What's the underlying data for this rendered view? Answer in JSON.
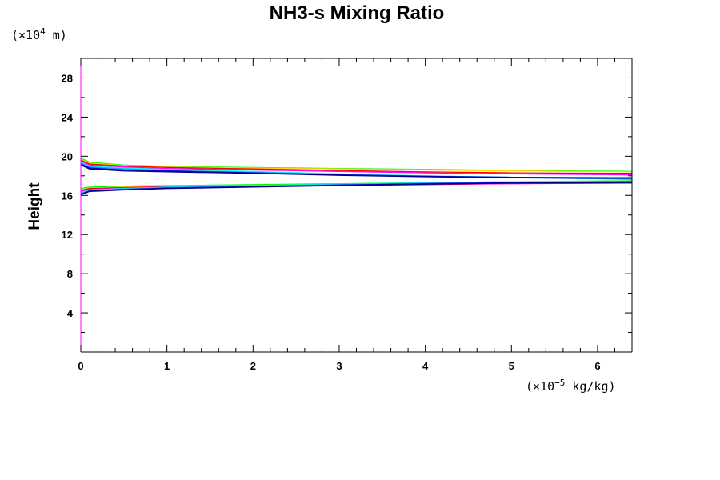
{
  "chart_data": {
    "type": "line",
    "title": "NH3-s Mixing Ratio",
    "ylabel": "Height",
    "xlabel": "",
    "y_unit_prefix": "(×10",
    "y_unit_exp": "4",
    "y_unit_suffix": " m)",
    "x_unit_prefix": "(×10",
    "x_unit_exp": "−5",
    "x_unit_suffix": " kg/kg)",
    "xlim": [
      0,
      6.4
    ],
    "ylim": [
      0,
      30
    ],
    "x_ticks": [
      0,
      1,
      2,
      3,
      4,
      5,
      6
    ],
    "y_ticks": [
      4,
      8,
      12,
      16,
      20,
      24,
      28
    ],
    "grid": false,
    "series": [
      {
        "color": "#00ff00",
        "values": [
          [
            0.0,
            19.8
          ],
          [
            0.1,
            19.4
          ],
          [
            0.5,
            19.1
          ],
          [
            1.0,
            18.95
          ],
          [
            2.0,
            18.85
          ],
          [
            3.0,
            18.75
          ],
          [
            4.0,
            18.65
          ],
          [
            5.0,
            18.55
          ],
          [
            6.4,
            18.45
          ]
        ]
      },
      {
        "color": "#ffd700",
        "values": [
          [
            0.0,
            19.7
          ],
          [
            0.1,
            19.3
          ],
          [
            0.5,
            19.05
          ],
          [
            1.0,
            18.9
          ],
          [
            2.0,
            18.8
          ],
          [
            3.0,
            18.7
          ],
          [
            4.0,
            18.6
          ],
          [
            5.0,
            18.5
          ],
          [
            6.4,
            18.4
          ]
        ]
      },
      {
        "color": "#ff0000",
        "values": [
          [
            0.0,
            19.6
          ],
          [
            0.1,
            19.2
          ],
          [
            0.5,
            19.0
          ],
          [
            1.0,
            18.85
          ],
          [
            2.0,
            18.7
          ],
          [
            3.0,
            18.55
          ],
          [
            4.0,
            18.4
          ],
          [
            5.0,
            18.3
          ],
          [
            6.4,
            18.25
          ]
        ]
      },
      {
        "color": "#ff00ff",
        "values": [
          [
            0.0,
            19.5
          ],
          [
            0.1,
            19.1
          ],
          [
            0.5,
            18.9
          ],
          [
            1.0,
            18.75
          ],
          [
            2.0,
            18.6
          ],
          [
            3.0,
            18.45
          ],
          [
            4.0,
            18.3
          ],
          [
            5.0,
            18.2
          ],
          [
            6.4,
            18.1
          ]
        ]
      },
      {
        "color": "#00ffff",
        "values": [
          [
            0.0,
            19.4
          ],
          [
            0.1,
            19.0
          ],
          [
            0.5,
            18.8
          ],
          [
            1.0,
            18.65
          ],
          [
            2.0,
            18.45
          ],
          [
            3.0,
            18.2
          ],
          [
            4.0,
            18.0
          ],
          [
            5.0,
            17.85
          ],
          [
            6.4,
            17.7
          ]
        ]
      },
      {
        "color": "#1e90ff",
        "values": [
          [
            0.0,
            19.3
          ],
          [
            0.1,
            18.9
          ],
          [
            0.5,
            18.7
          ],
          [
            1.0,
            18.55
          ],
          [
            2.0,
            18.35
          ],
          [
            3.0,
            18.15
          ],
          [
            4.0,
            17.95
          ],
          [
            5.0,
            17.8
          ],
          [
            6.4,
            17.65
          ]
        ]
      },
      {
        "color": "#0000cd",
        "values": [
          [
            0.0,
            19.2
          ],
          [
            0.1,
            18.8
          ],
          [
            0.5,
            18.6
          ],
          [
            1.0,
            18.5
          ],
          [
            2.0,
            18.3
          ],
          [
            3.0,
            18.1
          ],
          [
            4.0,
            17.95
          ],
          [
            5.0,
            17.85
          ],
          [
            6.4,
            17.8
          ]
        ]
      },
      {
        "color": "#000080",
        "values": [
          [
            0.0,
            19.1
          ],
          [
            0.1,
            18.7
          ],
          [
            0.5,
            18.5
          ],
          [
            1.0,
            18.4
          ],
          [
            2.0,
            18.25
          ],
          [
            3.0,
            18.05
          ],
          [
            4.0,
            17.9
          ],
          [
            5.0,
            17.8
          ],
          [
            6.4,
            17.75
          ]
        ]
      },
      {
        "color": "#00ff00",
        "values": [
          [
            0.0,
            16.7
          ],
          [
            0.1,
            16.85
          ],
          [
            0.5,
            16.95
          ],
          [
            1.0,
            17.0
          ],
          [
            2.0,
            17.1
          ],
          [
            3.0,
            17.2
          ],
          [
            4.0,
            17.3
          ],
          [
            5.0,
            17.4
          ],
          [
            6.4,
            17.5
          ]
        ]
      },
      {
        "color": "#ffd700",
        "values": [
          [
            0.0,
            16.6
          ],
          [
            0.1,
            16.75
          ],
          [
            0.5,
            16.85
          ],
          [
            1.0,
            16.95
          ],
          [
            2.0,
            17.0
          ],
          [
            3.0,
            17.05
          ],
          [
            4.0,
            17.15
          ],
          [
            5.0,
            17.25
          ],
          [
            6.4,
            17.35
          ]
        ]
      },
      {
        "color": "#ff0000",
        "values": [
          [
            0.0,
            16.5
          ],
          [
            0.1,
            16.7
          ],
          [
            0.5,
            16.8
          ],
          [
            1.0,
            16.9
          ],
          [
            2.0,
            16.95
          ],
          [
            3.0,
            17.0
          ],
          [
            4.0,
            17.1
          ],
          [
            5.0,
            17.2
          ],
          [
            6.4,
            17.3
          ]
        ]
      },
      {
        "color": "#ff00ff",
        "values": [
          [
            0.0,
            16.4
          ],
          [
            0.1,
            16.6
          ],
          [
            0.5,
            16.75
          ],
          [
            1.0,
            16.85
          ],
          [
            2.0,
            16.95
          ],
          [
            3.0,
            17.05
          ],
          [
            4.0,
            17.15
          ],
          [
            5.0,
            17.2
          ],
          [
            6.4,
            17.25
          ]
        ]
      },
      {
        "color": "#00ffff",
        "values": [
          [
            0.0,
            16.3
          ],
          [
            0.1,
            16.55
          ],
          [
            0.5,
            16.7
          ],
          [
            1.0,
            16.85
          ],
          [
            2.0,
            17.0
          ],
          [
            3.0,
            17.15
          ],
          [
            4.0,
            17.3
          ],
          [
            5.0,
            17.4
          ],
          [
            6.4,
            17.45
          ]
        ]
      },
      {
        "color": "#1e90ff",
        "values": [
          [
            0.0,
            16.2
          ],
          [
            0.1,
            16.5
          ],
          [
            0.5,
            16.65
          ],
          [
            1.0,
            16.8
          ],
          [
            2.0,
            16.95
          ],
          [
            3.0,
            17.1
          ],
          [
            4.0,
            17.25
          ],
          [
            5.0,
            17.35
          ],
          [
            6.4,
            17.4
          ]
        ]
      },
      {
        "color": "#0000cd",
        "values": [
          [
            0.0,
            16.1
          ],
          [
            0.1,
            16.45
          ],
          [
            0.5,
            16.6
          ],
          [
            1.0,
            16.75
          ],
          [
            2.0,
            16.9
          ],
          [
            3.0,
            17.05
          ],
          [
            4.0,
            17.2
          ],
          [
            5.0,
            17.3
          ],
          [
            6.4,
            17.4
          ]
        ]
      },
      {
        "color": "#000080",
        "values": [
          [
            0.0,
            16.05
          ],
          [
            0.1,
            16.4
          ],
          [
            0.5,
            16.55
          ],
          [
            1.0,
            16.7
          ],
          [
            2.0,
            16.85
          ],
          [
            3.0,
            17.0
          ],
          [
            4.0,
            17.15
          ],
          [
            5.0,
            17.25
          ],
          [
            6.4,
            17.3
          ]
        ]
      }
    ]
  }
}
